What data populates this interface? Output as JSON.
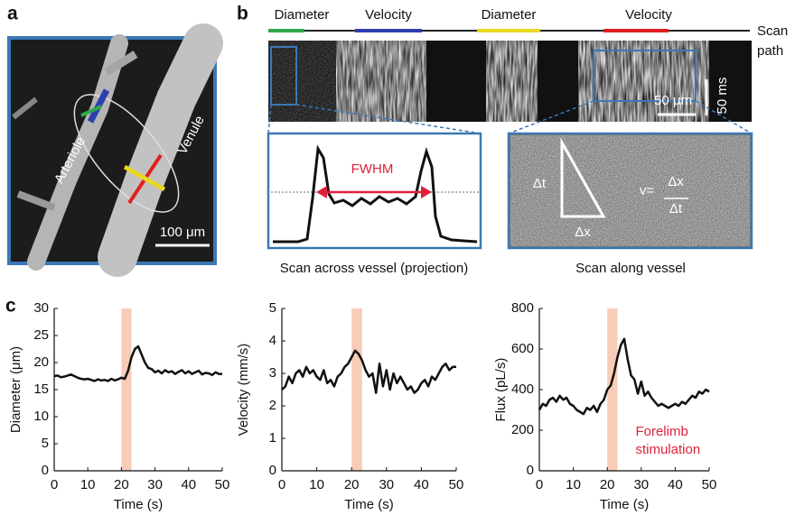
{
  "panel_labels": [
    "a",
    "b",
    "c"
  ],
  "panel_a": {
    "vessel_labels": [
      "Arteriole",
      "Venule"
    ],
    "scale_bar": "100 μm"
  },
  "panel_b": {
    "scan_segments": [
      "Diameter",
      "Velocity",
      "Diameter",
      "Velocity"
    ],
    "scan_path": [
      "Scan",
      "path"
    ],
    "scale_x": "50 μm",
    "scale_t": "50 ms",
    "fwhm": "FWHM",
    "left_caption": "Scan across vessel (projection)",
    "right_caption": "Scan along vessel",
    "dt": "Δt",
    "dx": "Δx",
    "v_eq": "v=",
    "frac_num": "Δx",
    "frac_den": "Δt"
  },
  "chart_data": [
    {
      "type": "line",
      "xlabel": "Time (s)",
      "ylabel": "Diameter (μm)",
      "color": "#111111",
      "x": [
        0,
        1,
        2,
        3,
        4,
        5,
        6,
        7,
        8,
        9,
        10,
        11,
        12,
        13,
        14,
        15,
        16,
        17,
        18,
        19,
        20,
        21,
        22,
        23,
        24,
        25,
        26,
        27,
        28,
        29,
        30,
        31,
        32,
        33,
        34,
        35,
        36,
        37,
        38,
        39,
        40,
        41,
        42,
        43,
        44,
        45,
        46,
        47,
        48,
        49,
        50
      ],
      "values": [
        17.5,
        17.6,
        17.3,
        17.4,
        17.6,
        17.8,
        17.5,
        17.2,
        17.0,
        16.9,
        17.0,
        16.8,
        16.6,
        16.9,
        16.7,
        16.8,
        16.6,
        17.0,
        16.7,
        16.9,
        17.2,
        17.0,
        18.5,
        21.0,
        22.5,
        23.0,
        21.5,
        20.0,
        19.0,
        18.8,
        18.2,
        18.5,
        18.0,
        18.6,
        18.2,
        18.4,
        17.9,
        18.3,
        18.6,
        18.0,
        18.4,
        17.9,
        18.2,
        18.5,
        17.8,
        18.1,
        18.0,
        17.7,
        18.2,
        17.9,
        17.9
      ],
      "xlim": [
        0,
        50
      ],
      "xticks": [
        0,
        10,
        20,
        30,
        40,
        50
      ],
      "ylim": [
        0,
        30
      ],
      "yticks": [
        0,
        5,
        10,
        15,
        20,
        25,
        30
      ],
      "stimulation_span": [
        20,
        23
      ],
      "stimulation_color": "#f7cdb8"
    },
    {
      "type": "line",
      "xlabel": "Time (s)",
      "ylabel": "Velocity (mm/s)",
      "color": "#111111",
      "x": [
        0,
        1,
        2,
        3,
        4,
        5,
        6,
        7,
        8,
        9,
        10,
        11,
        12,
        13,
        14,
        15,
        16,
        17,
        18,
        19,
        20,
        21,
        22,
        23,
        24,
        25,
        26,
        27,
        28,
        29,
        30,
        31,
        32,
        33,
        34,
        35,
        36,
        37,
        38,
        39,
        40,
        41,
        42,
        43,
        44,
        45,
        46,
        47,
        48,
        49,
        50
      ],
      "values": [
        2.5,
        2.6,
        2.9,
        2.7,
        3.0,
        3.1,
        2.9,
        3.2,
        3.0,
        3.1,
        2.9,
        2.8,
        3.1,
        2.7,
        2.8,
        2.6,
        2.9,
        3.0,
        3.2,
        3.3,
        3.5,
        3.7,
        3.6,
        3.4,
        3.1,
        2.9,
        3.0,
        2.4,
        3.3,
        2.6,
        3.1,
        2.5,
        3.0,
        2.7,
        2.9,
        2.7,
        2.5,
        2.6,
        2.4,
        2.5,
        2.7,
        2.8,
        2.6,
        2.9,
        2.8,
        3.0,
        3.2,
        3.3,
        3.1,
        3.2,
        3.2
      ],
      "xlim": [
        0,
        50
      ],
      "xticks": [
        0,
        10,
        20,
        30,
        40,
        50
      ],
      "ylim": [
        0,
        5
      ],
      "yticks": [
        0,
        1,
        2,
        3,
        4,
        5
      ],
      "stimulation_span": [
        20,
        23
      ],
      "stimulation_color": "#f7cdb8"
    },
    {
      "type": "line",
      "xlabel": "Time (s)",
      "ylabel": "Flux (pL/s)",
      "color": "#111111",
      "x": [
        0,
        1,
        2,
        3,
        4,
        5,
        6,
        7,
        8,
        9,
        10,
        11,
        12,
        13,
        14,
        15,
        16,
        17,
        18,
        19,
        20,
        21,
        22,
        23,
        24,
        25,
        26,
        27,
        28,
        29,
        30,
        31,
        32,
        33,
        34,
        35,
        36,
        37,
        38,
        39,
        40,
        41,
        42,
        43,
        44,
        45,
        46,
        47,
        48,
        49,
        50
      ],
      "values": [
        300,
        330,
        320,
        350,
        360,
        340,
        370,
        350,
        360,
        330,
        320,
        300,
        290,
        280,
        310,
        300,
        320,
        290,
        330,
        350,
        400,
        420,
        480,
        560,
        620,
        650,
        550,
        470,
        450,
        380,
        440,
        370,
        390,
        360,
        340,
        320,
        330,
        320,
        310,
        320,
        330,
        320,
        340,
        330,
        350,
        370,
        360,
        390,
        380,
        400,
        390
      ],
      "xlim": [
        0,
        50
      ],
      "xticks": [
        0,
        10,
        20,
        30,
        40,
        50
      ],
      "ylim": [
        0,
        800
      ],
      "yticks": [
        0,
        200,
        400,
        600,
        800
      ],
      "stimulation_span": [
        20,
        23
      ],
      "stimulation_color": "#f7cdb8",
      "annotation": [
        "Forelimb",
        "stimulation"
      ],
      "annotation_color": "#e0203a"
    }
  ]
}
